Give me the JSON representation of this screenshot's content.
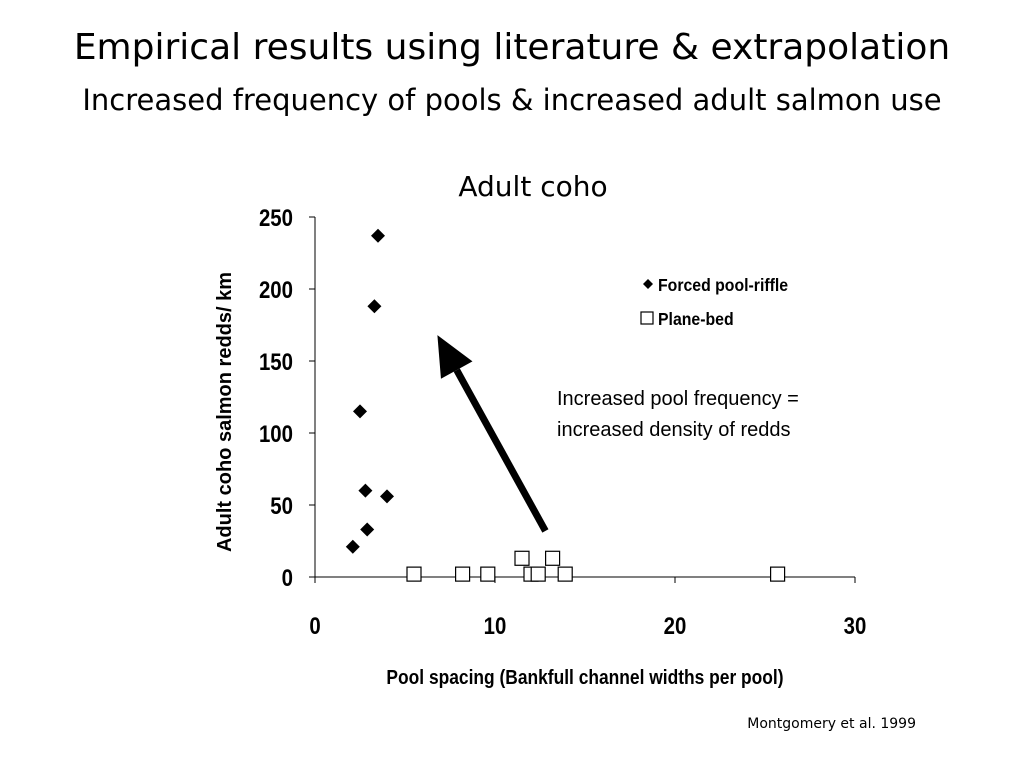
{
  "slide": {
    "title": "Empirical results using literature & extrapolation",
    "subtitle": "Increased frequency of pools & increased adult salmon use",
    "citation": "Montgomery et al. 1999"
  },
  "chart_data": {
    "type": "scatter",
    "title": "Adult coho",
    "xlabel": "Pool spacing (Bankfull channel widths per pool)",
    "ylabel": "Adult coho salmon redds/ km",
    "xlim": [
      0,
      30
    ],
    "ylim": [
      0,
      250
    ],
    "x_ticks": [
      0,
      10,
      20,
      30
    ],
    "y_ticks": [
      0,
      50,
      100,
      150,
      200,
      250
    ],
    "grid": false,
    "legend_position": "top-right",
    "series": [
      {
        "name": "Forced pool-riffle",
        "marker": "diamond",
        "color": "#000000",
        "points": [
          {
            "x": 3.5,
            "y": 237
          },
          {
            "x": 3.3,
            "y": 188
          },
          {
            "x": 2.5,
            "y": 115
          },
          {
            "x": 2.8,
            "y": 60
          },
          {
            "x": 4.0,
            "y": 56
          },
          {
            "x": 2.9,
            "y": 33
          },
          {
            "x": 2.1,
            "y": 21
          }
        ]
      },
      {
        "name": "Plane-bed",
        "marker": "square-open",
        "color": "#000000",
        "points": [
          {
            "x": 5.5,
            "y": 2
          },
          {
            "x": 8.2,
            "y": 2
          },
          {
            "x": 9.6,
            "y": 2
          },
          {
            "x": 11.5,
            "y": 13
          },
          {
            "x": 12.0,
            "y": 2
          },
          {
            "x": 12.4,
            "y": 2
          },
          {
            "x": 13.2,
            "y": 13
          },
          {
            "x": 13.9,
            "y": 2
          },
          {
            "x": 25.7,
            "y": 2
          }
        ]
      }
    ],
    "annotation": {
      "line1": "Increased pool frequency =",
      "line2": "increased density of redds"
    },
    "arrow": {
      "from": {
        "x": 12.8,
        "y": 32
      },
      "to": {
        "x": 6.8,
        "y": 168
      }
    }
  }
}
